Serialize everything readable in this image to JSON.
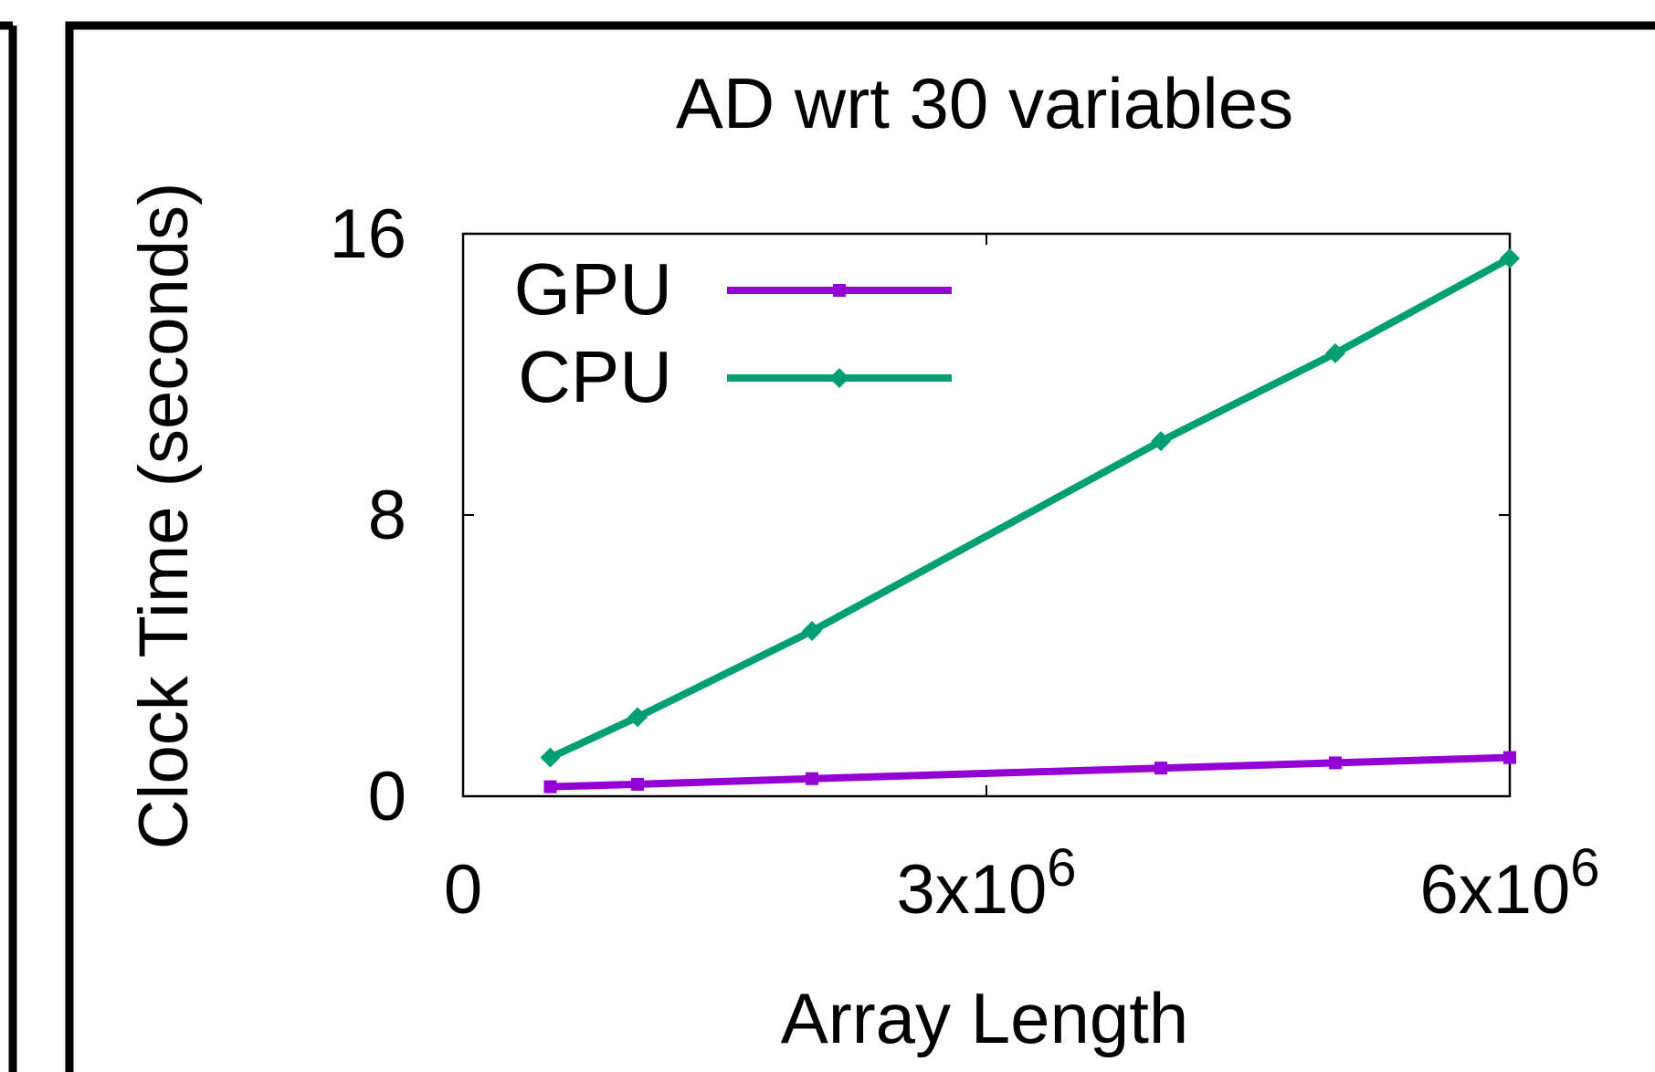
{
  "chart_data": {
    "type": "line",
    "title": "AD wrt 30 variables",
    "xlabel": "Array Length",
    "ylabel": "Clock Time (seconds)",
    "xlim": [
      0,
      6000000
    ],
    "ylim": [
      0,
      16
    ],
    "x_ticks": [
      {
        "value": 0,
        "base": "0",
        "exp": ""
      },
      {
        "value": 3000000,
        "base": "3x10",
        "exp": "6"
      },
      {
        "value": 6000000,
        "base": "6x10",
        "exp": "6"
      }
    ],
    "y_ticks": [
      {
        "value": 0,
        "label": "0"
      },
      {
        "value": 8,
        "label": "8"
      },
      {
        "value": 16,
        "label": "16"
      }
    ],
    "legend_position": "top-left",
    "grid": false,
    "series": [
      {
        "name": "GPU",
        "color": "#9400d3",
        "marker": "square",
        "x": [
          500000,
          1000000,
          2000000,
          4000000,
          5000000,
          6000000
        ],
        "y": [
          0.27,
          0.34,
          0.5,
          0.8,
          0.95,
          1.1
        ]
      },
      {
        "name": "CPU",
        "color": "#009e73",
        "marker": "diamond",
        "x": [
          500000,
          1000000,
          2000000,
          4000000,
          5000000,
          6000000
        ],
        "y": [
          1.1,
          2.25,
          4.7,
          10.1,
          12.6,
          15.3
        ]
      }
    ]
  }
}
